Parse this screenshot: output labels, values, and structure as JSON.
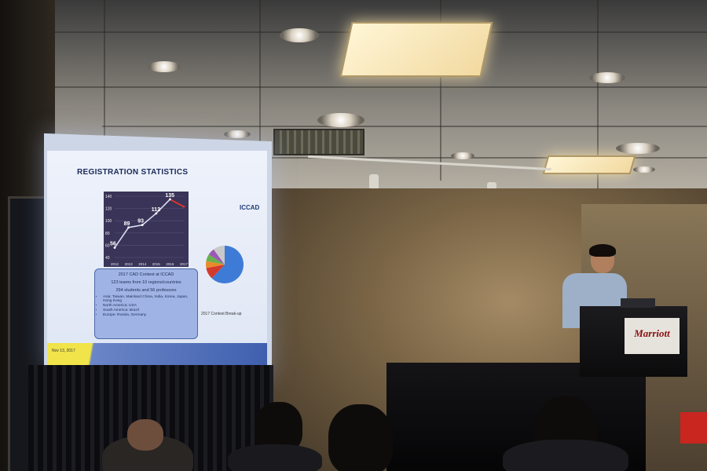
{
  "slide": {
    "title": "REGISTRATION STATISTICS",
    "logo": "ICCAD",
    "pie_caption": "2017 Contest Break-up",
    "date": "Nov 13, 2017",
    "info_header": "2017 CAD Contest at ICCAD",
    "info_lines": [
      "123 teams from 10 regions/countries",
      "294 students and 56 professors"
    ],
    "info_bullets": [
      "Asia: Taiwan, Mainland China, India, Korea, Japan, Hong Kong",
      "North America: USA",
      "South America: Brazil",
      "Europe: Russia, Germany"
    ]
  },
  "chart_data": {
    "type": "line",
    "x": [
      "2012",
      "2013",
      "2014",
      "2015",
      "2016",
      "2017"
    ],
    "values": [
      56,
      89,
      93,
      112,
      135,
      123
    ],
    "ylim": [
      40,
      140
    ],
    "yticks": [
      40,
      60,
      80,
      100,
      120,
      140
    ],
    "data_labels": [
      "56",
      "89",
      "93",
      "112",
      "135",
      ""
    ]
  },
  "podium_sign": "Marriott",
  "colors": {
    "slide_bg": "#eef2fb",
    "chart_bg": "#3a3458",
    "info_box": "#9fb4e4",
    "footer_yellow": "#f1e44a",
    "footer_blue": "#3f5fae"
  }
}
